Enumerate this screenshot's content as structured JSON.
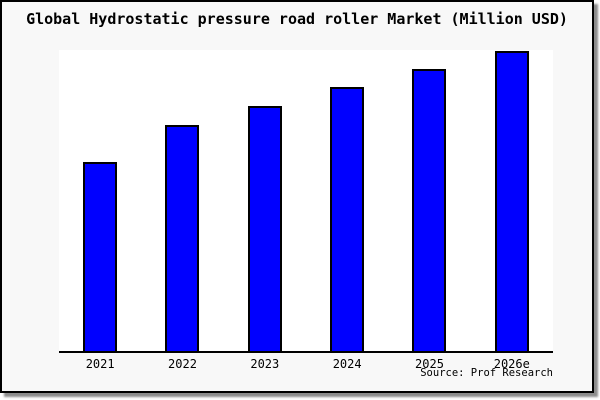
{
  "source_credit": "Source: Prof Research",
  "colors": {
    "bar_fill": "#0000ff",
    "bar_border": "#000000",
    "card_background": "#f8f8f8",
    "plot_background": "#ffffff",
    "axis": "#000000",
    "text": "#000000",
    "shadow": "#8c8c8c"
  },
  "chart_data": {
    "type": "bar",
    "title": "Global Hydrostatic pressure road roller Market (Million USD)",
    "categories": [
      "2021",
      "2022",
      "2023",
      "2024",
      "2025",
      "2026e"
    ],
    "values": [
      63,
      75.3,
      81.7,
      88,
      94,
      100
    ],
    "values_note": "No y-axis labels shown; values estimated from bar heights, indexed to 2026e = 100",
    "xlabel": "",
    "ylabel": "",
    "ylim": [
      0,
      100.4
    ],
    "grid": false,
    "legend": false,
    "y_axis_visible": false
  }
}
